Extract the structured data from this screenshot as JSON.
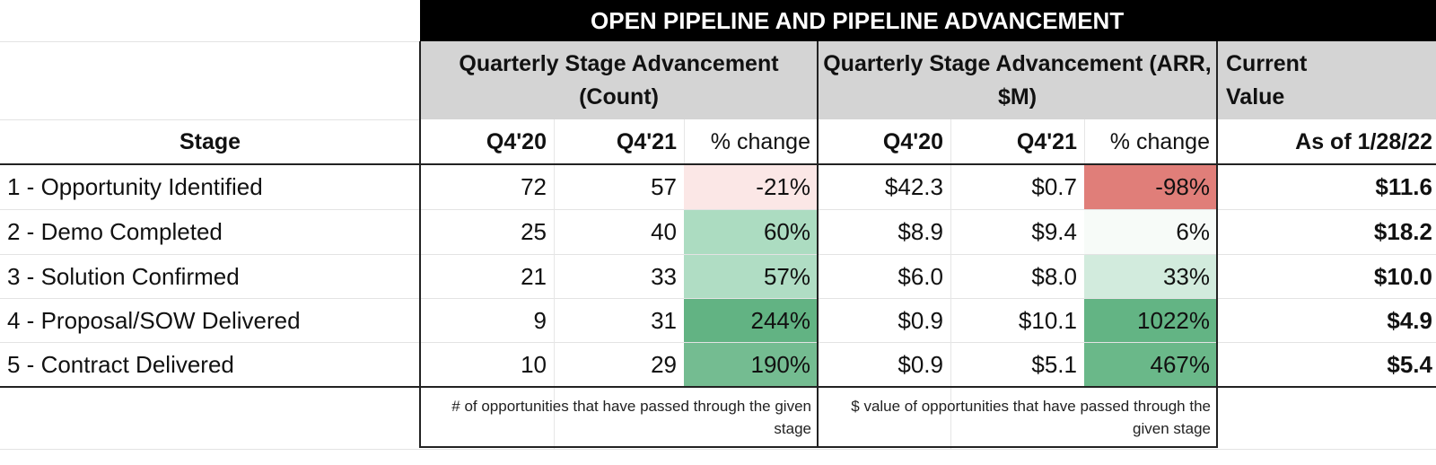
{
  "banner": "OPEN PIPELINE AND PIPELINE ADVANCEMENT",
  "groups": {
    "count": "Quarterly Stage Advancement (Count)",
    "arr": "Quarterly Stage Advancement (ARR, $M)",
    "current_line1": "Current",
    "current_line2": "Value"
  },
  "headers": {
    "stage": "Stage",
    "count_q4_20": "Q4'20",
    "count_q4_21": "Q4'21",
    "count_pct": "% change",
    "arr_q4_20": "Q4'20",
    "arr_q4_21": "Q4'21",
    "arr_pct": "% change",
    "current": "As of 1/28/22"
  },
  "rows": [
    {
      "stage": "1 - Opportunity Identified",
      "c20": "72",
      "c21": "57",
      "cpct": "-21%",
      "a20": "$42.3",
      "a21": "$0.7",
      "apct": "-98%",
      "cur": "$11.6"
    },
    {
      "stage": "2 - Demo Completed",
      "c20": "25",
      "c21": "40",
      "cpct": "60%",
      "a20": "$8.9",
      "a21": "$9.4",
      "apct": "6%",
      "cur": "$18.2"
    },
    {
      "stage": "3 - Solution Confirmed",
      "c20": "21",
      "c21": "33",
      "cpct": "57%",
      "a20": "$6.0",
      "a21": "$8.0",
      "apct": "33%",
      "cur": "$10.0"
    },
    {
      "stage": "4 - Proposal/SOW Delivered",
      "c20": "9",
      "c21": "31",
      "cpct": "244%",
      "a20": "$0.9",
      "a21": "$10.1",
      "apct": "1022%",
      "cur": "$4.9"
    },
    {
      "stage": "5 - Contract Delivered",
      "c20": "10",
      "c21": "29",
      "cpct": "190%",
      "a20": "$0.9",
      "a21": "$5.1",
      "apct": "467%",
      "cur": "$5.4"
    }
  ],
  "notes": {
    "count": "# of opportunities that have passed through the given stage",
    "arr": "$ value of opportunities that have passed through the given stage"
  },
  "colors": {
    "count_pct_fill": [
      "#fbe7e6",
      "#acdcc1",
      "#b0ddc4",
      "#62b383",
      "#74bc91"
    ],
    "arr_pct_fill": [
      "#e07e79",
      "#f7fbf8",
      "#d2ebdd",
      "#63b484",
      "#6ab889"
    ],
    "banner_bg": "#000000",
    "group_header_bg": "#d4d4d4"
  }
}
